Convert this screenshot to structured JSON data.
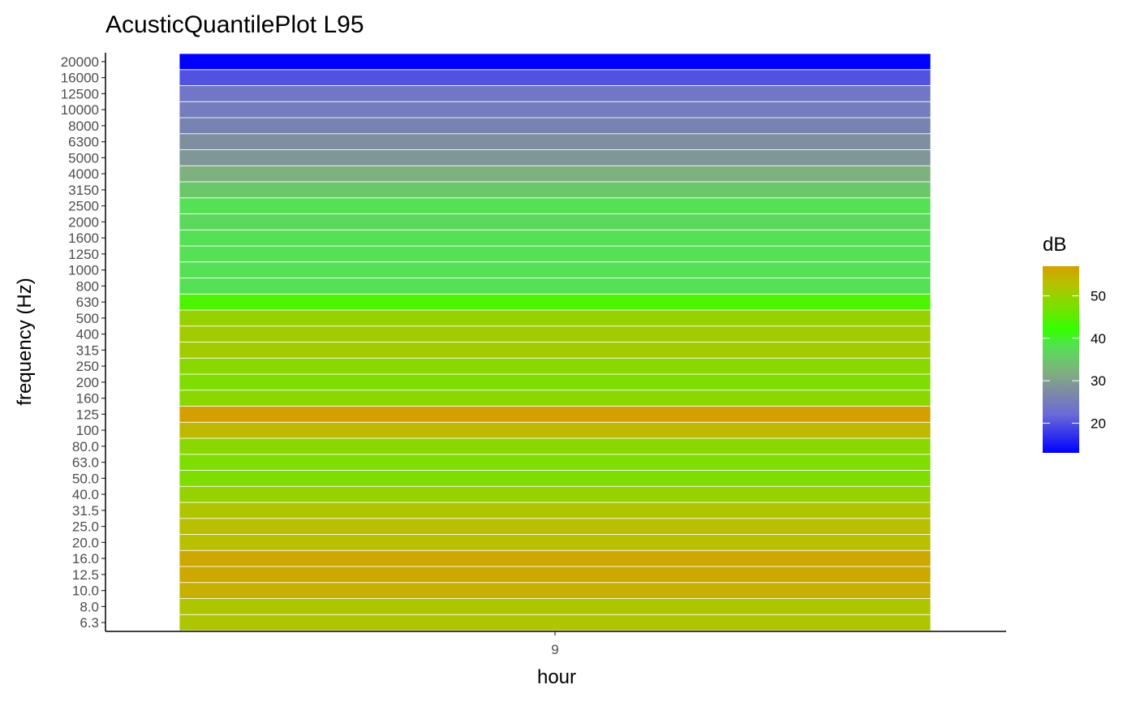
{
  "chart_data": {
    "type": "heatmap",
    "title": "AcusticQuantilePlot L95",
    "xlabel": "hour",
    "ylabel": "frequency (Hz)",
    "x_categories": [
      "9"
    ],
    "y_categories": [
      "6.3",
      "8.0",
      "10.0",
      "12.5",
      "16.0",
      "20.0",
      "25.0",
      "31.5",
      "40.0",
      "50.0",
      "63.0",
      "80.0",
      "100",
      "125",
      "160",
      "200",
      "250",
      "315",
      "400",
      "500",
      "630",
      "800",
      "1000",
      "1250",
      "1600",
      "2000",
      "2500",
      "3150",
      "4000",
      "5000",
      "6300",
      "8000",
      "10000",
      "12500",
      "16000",
      "20000"
    ],
    "values": [
      52,
      52,
      55,
      56,
      56,
      53,
      53,
      52,
      50,
      48,
      48,
      49,
      54,
      57,
      49,
      48,
      49,
      51,
      51,
      50,
      44,
      38,
      38,
      38,
      38,
      37,
      38,
      35,
      32,
      29,
      28,
      26,
      25,
      24,
      20,
      12
    ],
    "legend": {
      "title": "dB",
      "position": "right",
      "ticks": [
        20,
        30,
        40,
        50
      ],
      "range": [
        13,
        57
      ],
      "stops": [
        {
          "value": 13,
          "color": "#0000ff"
        },
        {
          "value": 22,
          "color": "#6a6ad8"
        },
        {
          "value": 28,
          "color": "#7f8f9f"
        },
        {
          "value": 32,
          "color": "#7fb07f"
        },
        {
          "value": 38,
          "color": "#55e055"
        },
        {
          "value": 42,
          "color": "#33ff00"
        },
        {
          "value": 48,
          "color": "#80dd00"
        },
        {
          "value": 53,
          "color": "#b8c000"
        },
        {
          "value": 57,
          "color": "#d4a000"
        }
      ]
    },
    "grid": false
  }
}
